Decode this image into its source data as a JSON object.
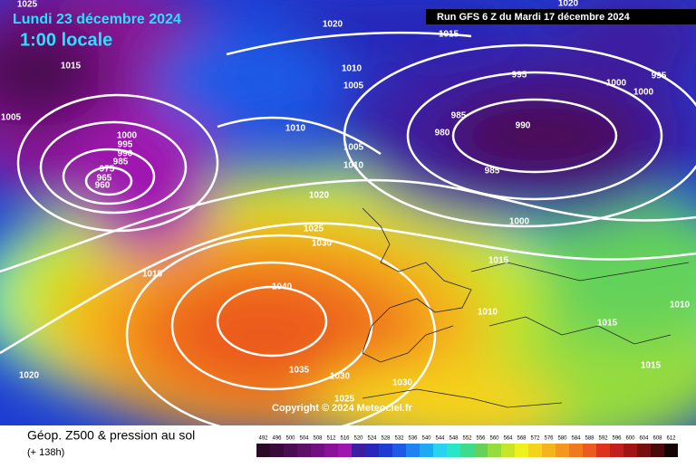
{
  "header": {
    "date": "Lundi 23 décembre 2024",
    "time": "1:00 locale",
    "run": "Run GFS 6 Z du Mardi 17 décembre 2024"
  },
  "footer": {
    "title": "Géop. Z500 & pression au sol",
    "lead": "(+ 138h)",
    "copyright": "Copyright © 2024 Meteociel.fr"
  },
  "isobar_labels": [
    "1025",
    "1020",
    "1015",
    "1010",
    "1005",
    "1015",
    "1005",
    "1000",
    "995",
    "990",
    "985",
    "975",
    "965",
    "960",
    "1010",
    "1005",
    "1010",
    "1020",
    "1025",
    "1030",
    "1015",
    "1040",
    "1035",
    "1030",
    "1030",
    "1025",
    "1020",
    "995",
    "985",
    "980",
    "990",
    "985",
    "1000",
    "1000",
    "1000",
    "995",
    "1020",
    "1015",
    "1010",
    "1015",
    "1015",
    "1010"
  ],
  "scale": [
    {
      "label": 492,
      "color": "#2a0a24"
    },
    {
      "label": 496,
      "color": "#3a0a3a"
    },
    {
      "label": 500,
      "color": "#4b0d52"
    },
    {
      "label": 504,
      "color": "#5e0f68"
    },
    {
      "label": 508,
      "color": "#721080"
    },
    {
      "label": 512,
      "color": "#8a1298"
    },
    {
      "label": 516,
      "color": "#a014b0"
    },
    {
      "label": 520,
      "color": "#3c1ea0"
    },
    {
      "label": 524,
      "color": "#2828b8"
    },
    {
      "label": 528,
      "color": "#1e3cd2"
    },
    {
      "label": 532,
      "color": "#1e5ae6"
    },
    {
      "label": 536,
      "color": "#1e82f0"
    },
    {
      "label": 540,
      "color": "#1eaaf0"
    },
    {
      "label": 544,
      "color": "#28d2f0"
    },
    {
      "label": 548,
      "color": "#28e6c8"
    },
    {
      "label": 552,
      "color": "#3cdc8c"
    },
    {
      "label": 556,
      "color": "#64d25a"
    },
    {
      "label": 560,
      "color": "#96dc3c"
    },
    {
      "label": 564,
      "color": "#c8e628"
    },
    {
      "label": 568,
      "color": "#f0f01e"
    },
    {
      "label": 572,
      "color": "#f5d21e"
    },
    {
      "label": 576,
      "color": "#f5b41e"
    },
    {
      "label": 580,
      "color": "#f5961e"
    },
    {
      "label": 584,
      "color": "#f0781e"
    },
    {
      "label": 588,
      "color": "#eb5a1e"
    },
    {
      "label": 592,
      "color": "#dc321e"
    },
    {
      "label": 596,
      "color": "#c31e1e"
    },
    {
      "label": 600,
      "color": "#a01414"
    },
    {
      "label": 604,
      "color": "#780f0f"
    },
    {
      "label": 608,
      "color": "#4b0a0a"
    },
    {
      "label": 612,
      "color": "#140505"
    }
  ]
}
